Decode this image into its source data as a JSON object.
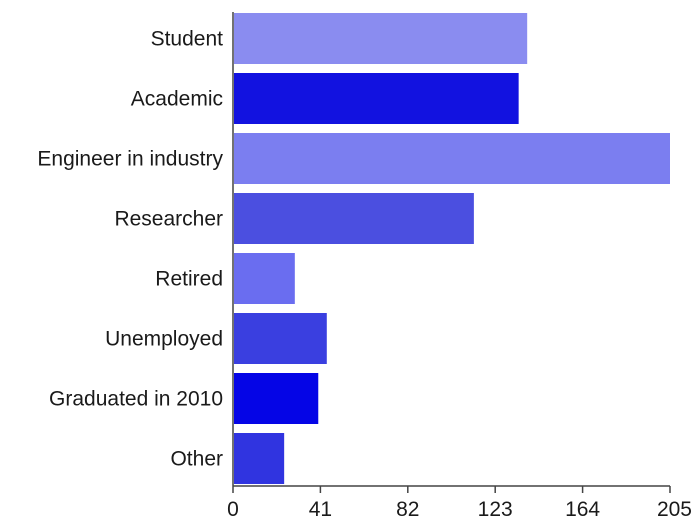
{
  "chart_data": {
    "type": "bar",
    "orientation": "horizontal",
    "categories": [
      "Student",
      "Academic",
      "Engineer in industry",
      "Researcher",
      "Retired",
      "Unemployed",
      "Graduated in 2010",
      "Other"
    ],
    "values": [
      138,
      134,
      205,
      113,
      29,
      44,
      40,
      24
    ],
    "colors": [
      "#8a8cf0",
      "#1212e0",
      "#7b7ef0",
      "#4b4fe0",
      "#6a6df0",
      "#3a3fe0",
      "#0505e6",
      "#3034e0"
    ],
    "xticks": [
      0,
      41,
      82,
      123,
      164,
      205
    ],
    "xlim": [
      0,
      205
    ],
    "title": "",
    "xlabel": "",
    "ylabel": "",
    "grid": false,
    "legend": "none"
  }
}
